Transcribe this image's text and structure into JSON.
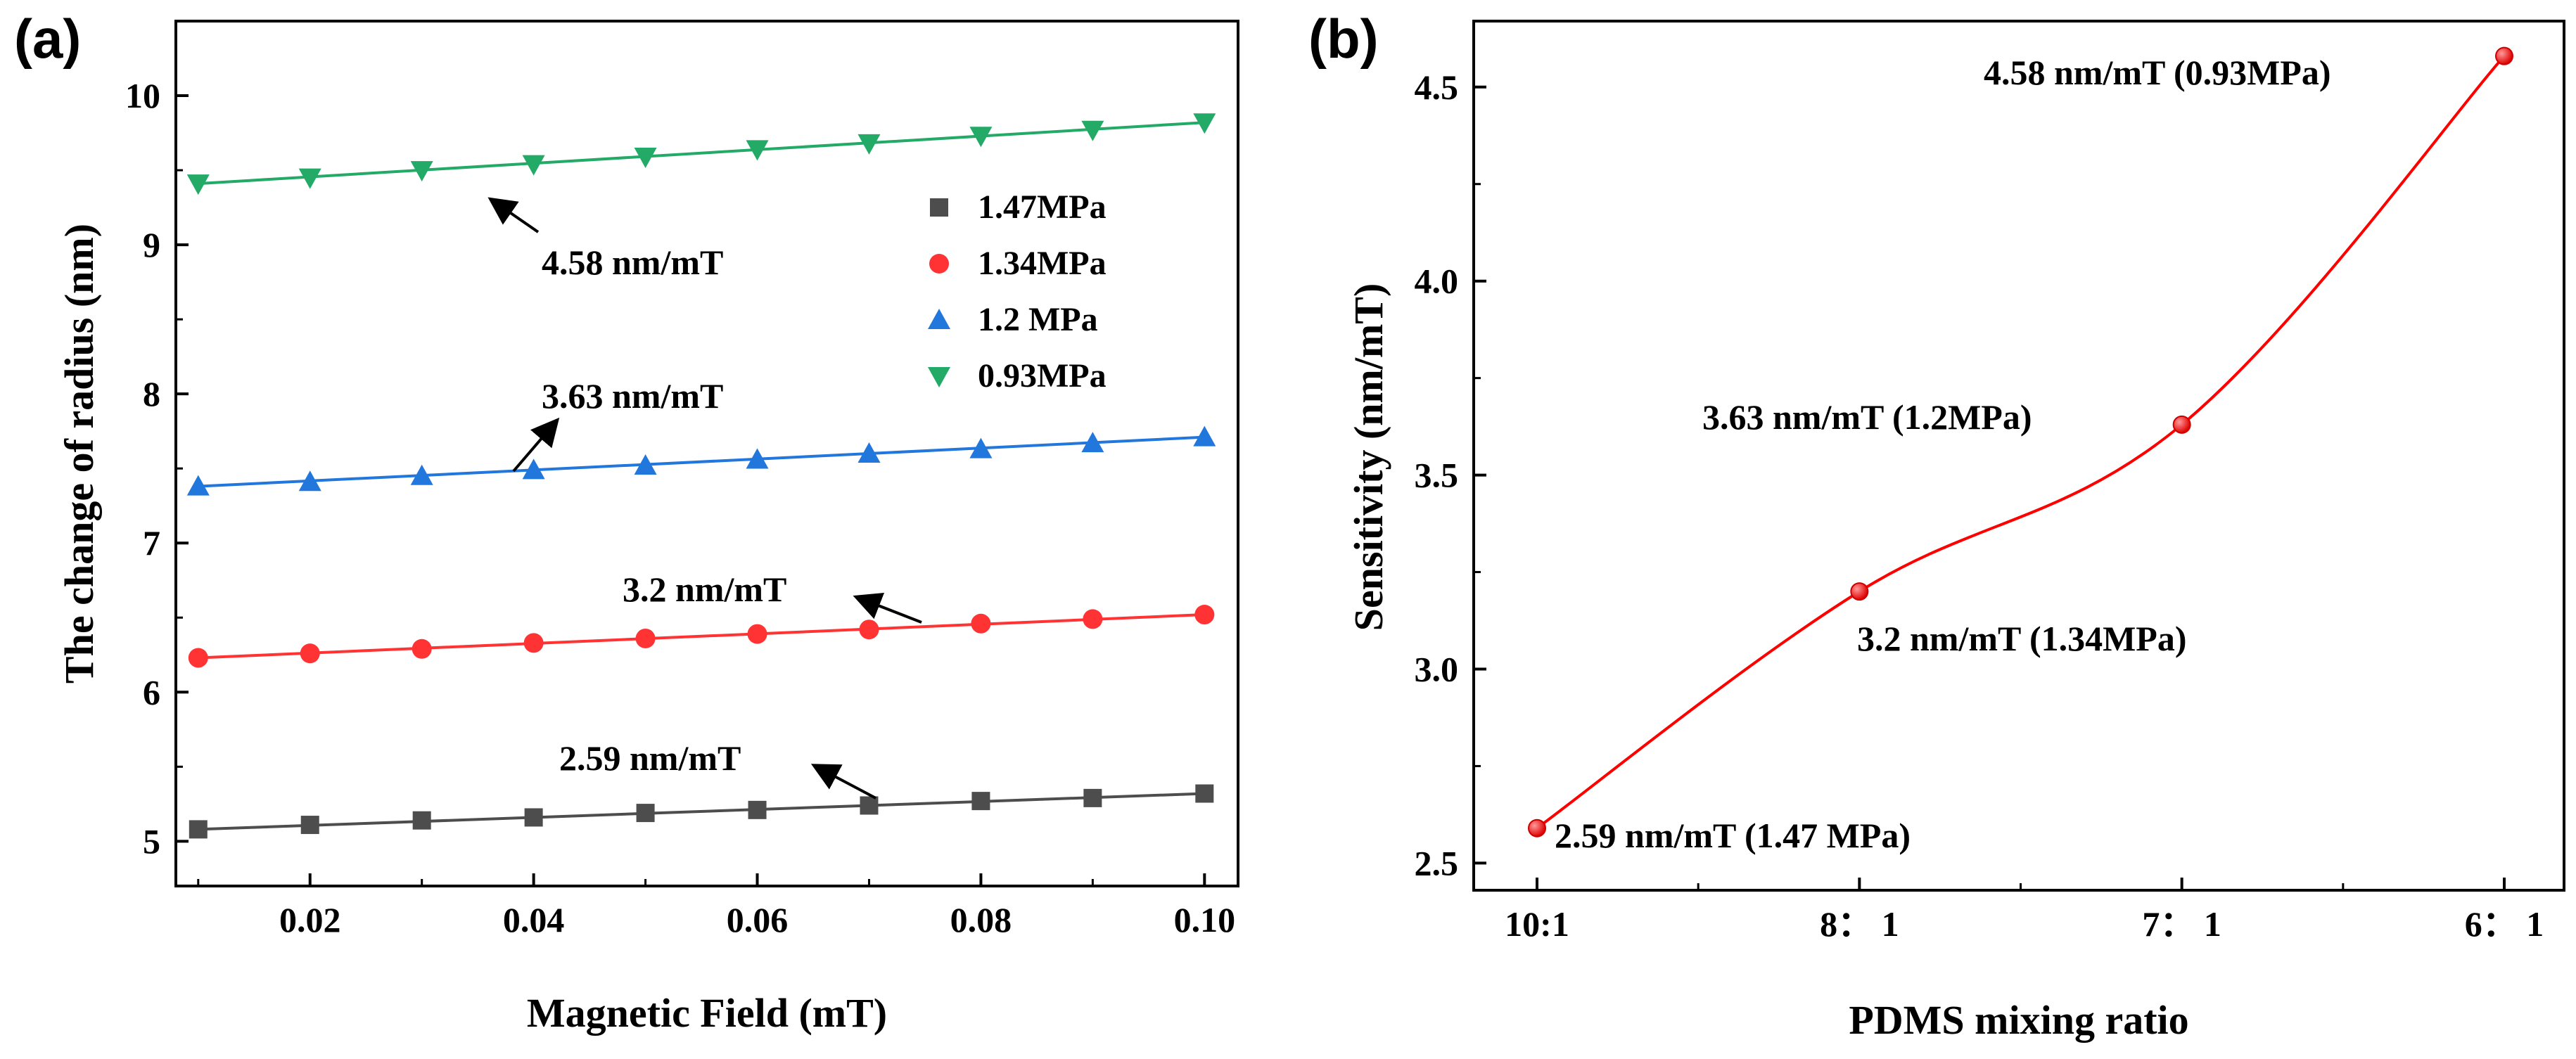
{
  "chart_data": [
    {
      "panel_label": "(a)",
      "type": "scatter",
      "xlabel": "Magnetic Field (mT)",
      "ylabel": "The change of radius (nm)",
      "xlim": [
        0.008,
        0.103
      ],
      "ylim": [
        4.7,
        10.5
      ],
      "xticks": [
        0.02,
        0.04,
        0.06,
        0.08,
        0.1
      ],
      "xtick_labels": [
        "0.02",
        "0.04",
        "0.06",
        "0.08",
        "0.10"
      ],
      "yticks": [
        5,
        6,
        7,
        8,
        9,
        10
      ],
      "ytick_labels": [
        "5",
        "6",
        "7",
        "8",
        "9",
        "10"
      ],
      "legend_position": "right",
      "x": [
        0.01,
        0.02,
        0.03,
        0.04,
        0.05,
        0.06,
        0.07,
        0.08,
        0.09,
        0.1
      ],
      "series": [
        {
          "name": "1.47MPa",
          "marker": "square",
          "color": "#4d4d4d",
          "values": [
            5.08,
            5.11,
            5.14,
            5.16,
            5.19,
            5.21,
            5.24,
            5.27,
            5.29,
            5.32
          ],
          "fit": [
            5.08,
            5.32
          ],
          "annotation": "2.59 nm/mT"
        },
        {
          "name": "1.34MPa",
          "marker": "circle",
          "color": "#ff3333",
          "values": [
            6.23,
            6.26,
            6.29,
            6.33,
            6.36,
            6.39,
            6.42,
            6.46,
            6.49,
            6.52
          ],
          "fit": [
            6.23,
            6.52
          ],
          "annotation": "3.2 nm/mT"
        },
        {
          "name": "1.2 MPa",
          "marker": "triangle-up",
          "color": "#2277dd",
          "values": [
            7.38,
            7.41,
            7.45,
            7.49,
            7.52,
            7.56,
            7.6,
            7.63,
            7.67,
            7.71
          ],
          "fit": [
            7.38,
            7.71
          ],
          "annotation": "3.63 nm/mT"
        },
        {
          "name": "0.93MPa",
          "marker": "triangle-down",
          "color": "#22aa66",
          "values": [
            9.41,
            9.45,
            9.5,
            9.54,
            9.59,
            9.64,
            9.68,
            9.73,
            9.77,
            9.82
          ],
          "fit": [
            9.41,
            9.82
          ],
          "annotation": "4.58 nm/mT"
        }
      ]
    },
    {
      "panel_label": "(b)",
      "type": "line",
      "xlabel": "PDMS mixing ratio",
      "ylabel": "Sensitivity (nm/mT)",
      "categories": [
        "10:1",
        "8： 1",
        "7： 1",
        "6： 1"
      ],
      "ylim": [
        2.43,
        4.67
      ],
      "yticks": [
        2.5,
        3.0,
        3.5,
        4.0,
        4.5
      ],
      "ytick_labels": [
        "2.5",
        "3.0",
        "3.5",
        "4.0",
        "4.5"
      ],
      "color": "#ff0000",
      "series": [
        {
          "name": "Sensitivity",
          "values": [
            2.59,
            3.2,
            3.63,
            4.58
          ]
        }
      ],
      "point_labels": [
        "2.59 nm/mT (1.47 MPa)",
        "3.2 nm/mT (1.34MPa)",
        "3.63 nm/mT (1.2MPa)",
        "4.58 nm/mT (0.93MPa)"
      ]
    }
  ]
}
